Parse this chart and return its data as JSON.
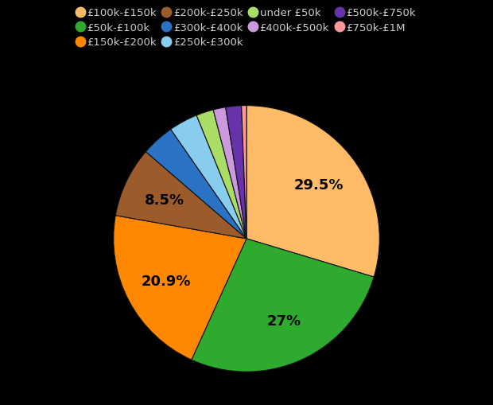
{
  "labels": [
    "£100k-£150k",
    "£50k-£100k",
    "£150k-£200k",
    "£200k-£250k",
    "£300k-£400k",
    "£250k-£300k",
    "under £50k",
    "£400k-£500k",
    "£500k-£750k",
    "£750k-£1M"
  ],
  "values": [
    29.5,
    27.0,
    20.9,
    8.5,
    4.0,
    3.5,
    2.1,
    1.5,
    1.9,
    0.6
  ],
  "colors": [
    "#FFBB66",
    "#2EAA2E",
    "#FF8800",
    "#9B5B2A",
    "#2A72C3",
    "#88CCEE",
    "#AADD66",
    "#CC99DD",
    "#6633AA",
    "#FF9999"
  ],
  "background_color": "#000000",
  "text_color": "#000000",
  "label_color": "#cccccc",
  "startangle": 90,
  "legend_fontsize": 9.5,
  "autopct_fontsize": 13
}
